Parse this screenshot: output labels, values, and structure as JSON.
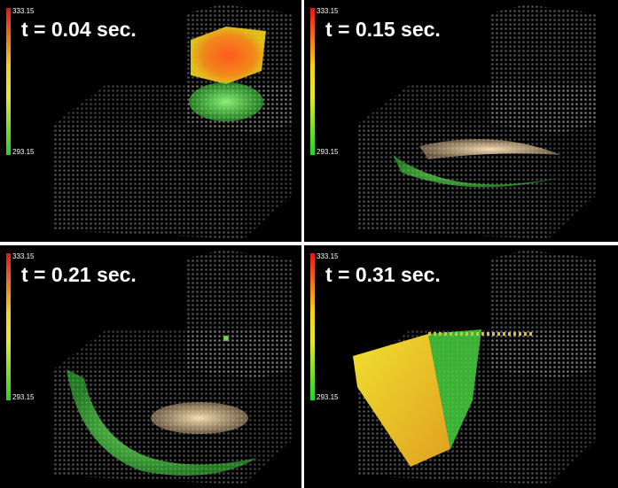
{
  "panels": [
    {
      "label": "t = 0.04 sec.",
      "colorbar": {
        "max": "333.15",
        "min": "293.15"
      }
    },
    {
      "label": "t = 0.15 sec.",
      "colorbar": {
        "max": "333.15",
        "min": "293.15"
      }
    },
    {
      "label": "t = 0.21 sec.",
      "colorbar": {
        "max": "333.15",
        "min": "293.15"
      }
    },
    {
      "label": "t = 0.31 sec.",
      "colorbar": {
        "max": "333.15",
        "min": "293.15"
      }
    }
  ]
}
